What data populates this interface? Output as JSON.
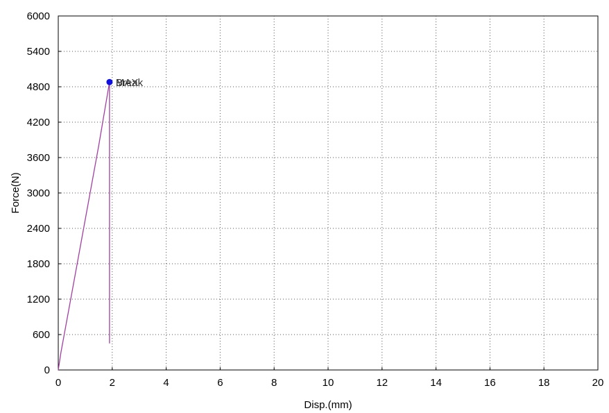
{
  "chart_data": {
    "type": "line",
    "xlabel": "Disp.(mm)",
    "ylabel": "Force(N)",
    "xlim": [
      0,
      20
    ],
    "ylim": [
      0,
      6000
    ],
    "x_ticks": [
      0,
      2,
      4,
      6,
      8,
      10,
      12,
      14,
      16,
      18,
      20
    ],
    "y_ticks": [
      0,
      600,
      1200,
      1800,
      2400,
      3000,
      3600,
      4200,
      4800,
      5400,
      6000
    ],
    "x_tick_labels": [
      "0",
      "2",
      "4",
      "6",
      "8",
      "10",
      "12",
      "14",
      "16",
      "18",
      "20"
    ],
    "y_tick_labels": [
      "0",
      "600",
      "1200",
      "1800",
      "2400",
      "3000",
      "3600",
      "4200",
      "4800",
      "5400",
      "6000"
    ],
    "grid": true,
    "series": [
      {
        "color": "#a040a0",
        "x": [
          0,
          0.1,
          0.5,
          1.0,
          1.5,
          1.85,
          1.9,
          1.9
        ],
        "y": [
          0,
          300,
          1300,
          2550,
          3800,
          4750,
          4880,
          450
        ]
      }
    ],
    "markers": [
      {
        "x": 1.9,
        "y": 4880,
        "color": "#1010e0"
      }
    ],
    "annotations": [
      {
        "text": "MAX",
        "x": 1.9,
        "y": 4880
      },
      {
        "text": "Break",
        "x": 1.9,
        "y": 4880
      }
    ]
  }
}
